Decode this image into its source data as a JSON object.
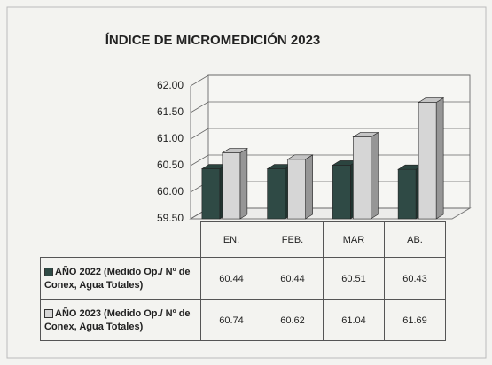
{
  "chart_data": {
    "type": "bar3d",
    "title": "ÍNDICE DE MICROMEDICIÓN 2023",
    "categories": [
      "EN.",
      "FEB.",
      "MAR",
      "AB."
    ],
    "series": [
      {
        "name": "AÑO 2022 (Medido Op./ Nº de Conex, Agua Totales)",
        "color": "#2f4a45",
        "values": [
          60.44,
          60.44,
          60.51,
          60.43
        ]
      },
      {
        "name": "AÑO 2023 (Medido Op./ Nº de Conex, Agua Totales)",
        "color": "#d6d6d6",
        "values": [
          60.74,
          60.62,
          61.04,
          61.69
        ]
      }
    ],
    "ylim": [
      59.5,
      62
    ],
    "yticks": [
      {
        "value": 59.5,
        "label": "59.50"
      },
      {
        "value": 60,
        "label": "60.00"
      },
      {
        "value": 60.5,
        "label": "60.50"
      },
      {
        "value": 61,
        "label": "61.00"
      },
      {
        "value": 61.5,
        "label": "61.50"
      },
      {
        "value": 62,
        "label": "62.00"
      }
    ],
    "grid": true
  }
}
